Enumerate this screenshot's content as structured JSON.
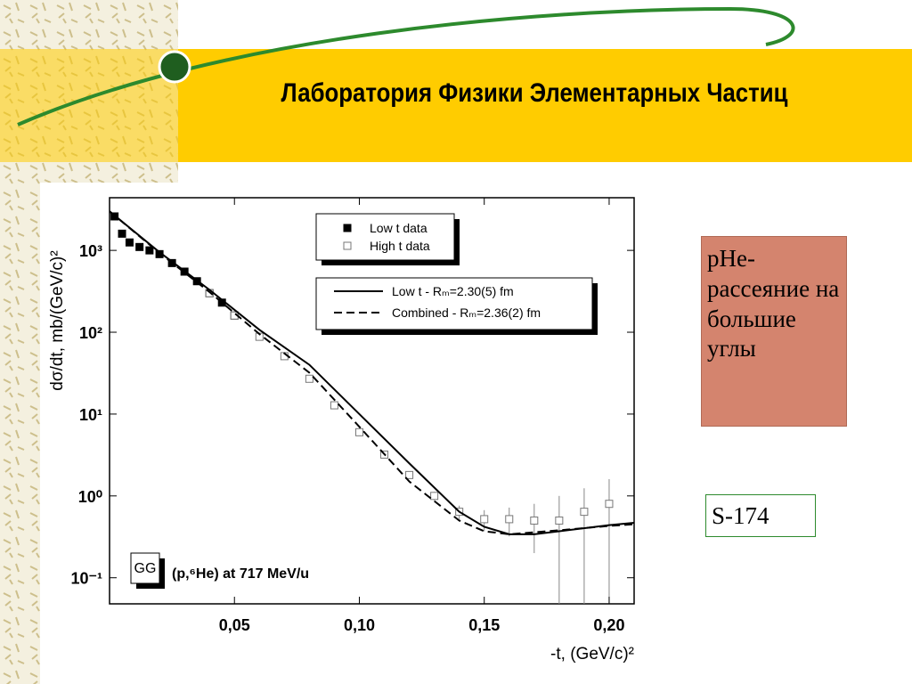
{
  "header": {
    "title": "Лаборатория Физики Элементарных Частиц"
  },
  "chart_data": {
    "type": "scatter",
    "xlabel": "-t, (GeV/c)²",
    "ylabel": "dσ/dt, mb/(GeV/c)²",
    "annotation": "(p,⁶He) at 717 MeV/u",
    "badge": "GG",
    "xlim": [
      0,
      0.21
    ],
    "ylim": [
      0.048,
      4400
    ],
    "ylog": true,
    "xticks": [
      {
        "value": 0.05,
        "label": "0,05"
      },
      {
        "value": 0.1,
        "label": "0,10"
      },
      {
        "value": 0.15,
        "label": "0,15"
      },
      {
        "value": 0.2,
        "label": "0,20"
      }
    ],
    "yticks": [
      {
        "value": 0.1,
        "label": "10⁻¹"
      },
      {
        "value": 1,
        "label": "10⁰"
      },
      {
        "value": 10,
        "label": "10¹"
      },
      {
        "value": 100,
        "label": "10²"
      },
      {
        "value": 1000,
        "label": "10³"
      }
    ],
    "series": [
      {
        "name": "Low t data",
        "color": "#000000",
        "style": "filled-square",
        "x": [
          0.002,
          0.005,
          0.008,
          0.012,
          0.016,
          0.02,
          0.025,
          0.03,
          0.035,
          0.04,
          0.045,
          0.05
        ],
        "values": [
          2600,
          1600,
          1250,
          1100,
          1000,
          900,
          700,
          550,
          420,
          300,
          230,
          160
        ]
      },
      {
        "name": "High t data",
        "color": "#888888",
        "style": "open-square",
        "x": [
          0.04,
          0.05,
          0.06,
          0.07,
          0.08,
          0.09,
          0.1,
          0.11,
          0.12,
          0.13,
          0.14,
          0.15,
          0.16,
          0.17,
          0.18,
          0.19,
          0.2
        ],
        "values": [
          300,
          160,
          88,
          51,
          27,
          12.8,
          6,
          3.2,
          1.8,
          1,
          0.64,
          0.52,
          0.52,
          0.5,
          0.5,
          0.64,
          0.8
        ],
        "errors": [
          15,
          8,
          4,
          2.5,
          1.4,
          0.7,
          0.35,
          0.2,
          0.15,
          0.12,
          0.12,
          0.15,
          0.2,
          0.3,
          0.5,
          0.6,
          0.8
        ]
      },
      {
        "name": "Low t        - Rₘ=2.30(5) fm",
        "color": "#000000",
        "style": "solid",
        "x": [
          0,
          0.02,
          0.04,
          0.06,
          0.08,
          0.1,
          0.12,
          0.14,
          0.15,
          0.16,
          0.17,
          0.18,
          0.2,
          0.21
        ],
        "values": [
          3000,
          950,
          330,
          107,
          40,
          10,
          2.5,
          0.64,
          0.42,
          0.34,
          0.34,
          0.37,
          0.44,
          0.47
        ]
      },
      {
        "name": "Combined  - Rₘ=2.36(2) fm",
        "color": "#000000",
        "style": "dashed",
        "x": [
          0,
          0.02,
          0.04,
          0.06,
          0.08,
          0.1,
          0.12,
          0.14,
          0.15,
          0.16,
          0.18,
          0.2,
          0.21
        ],
        "values": [
          3000,
          930,
          310,
          95,
          32,
          7,
          1.5,
          0.5,
          0.37,
          0.34,
          0.38,
          0.43,
          0.45
        ]
      }
    ]
  },
  "sidebar": {
    "note": "pHe-рассеяние на большие углы",
    "code": "S-174"
  }
}
